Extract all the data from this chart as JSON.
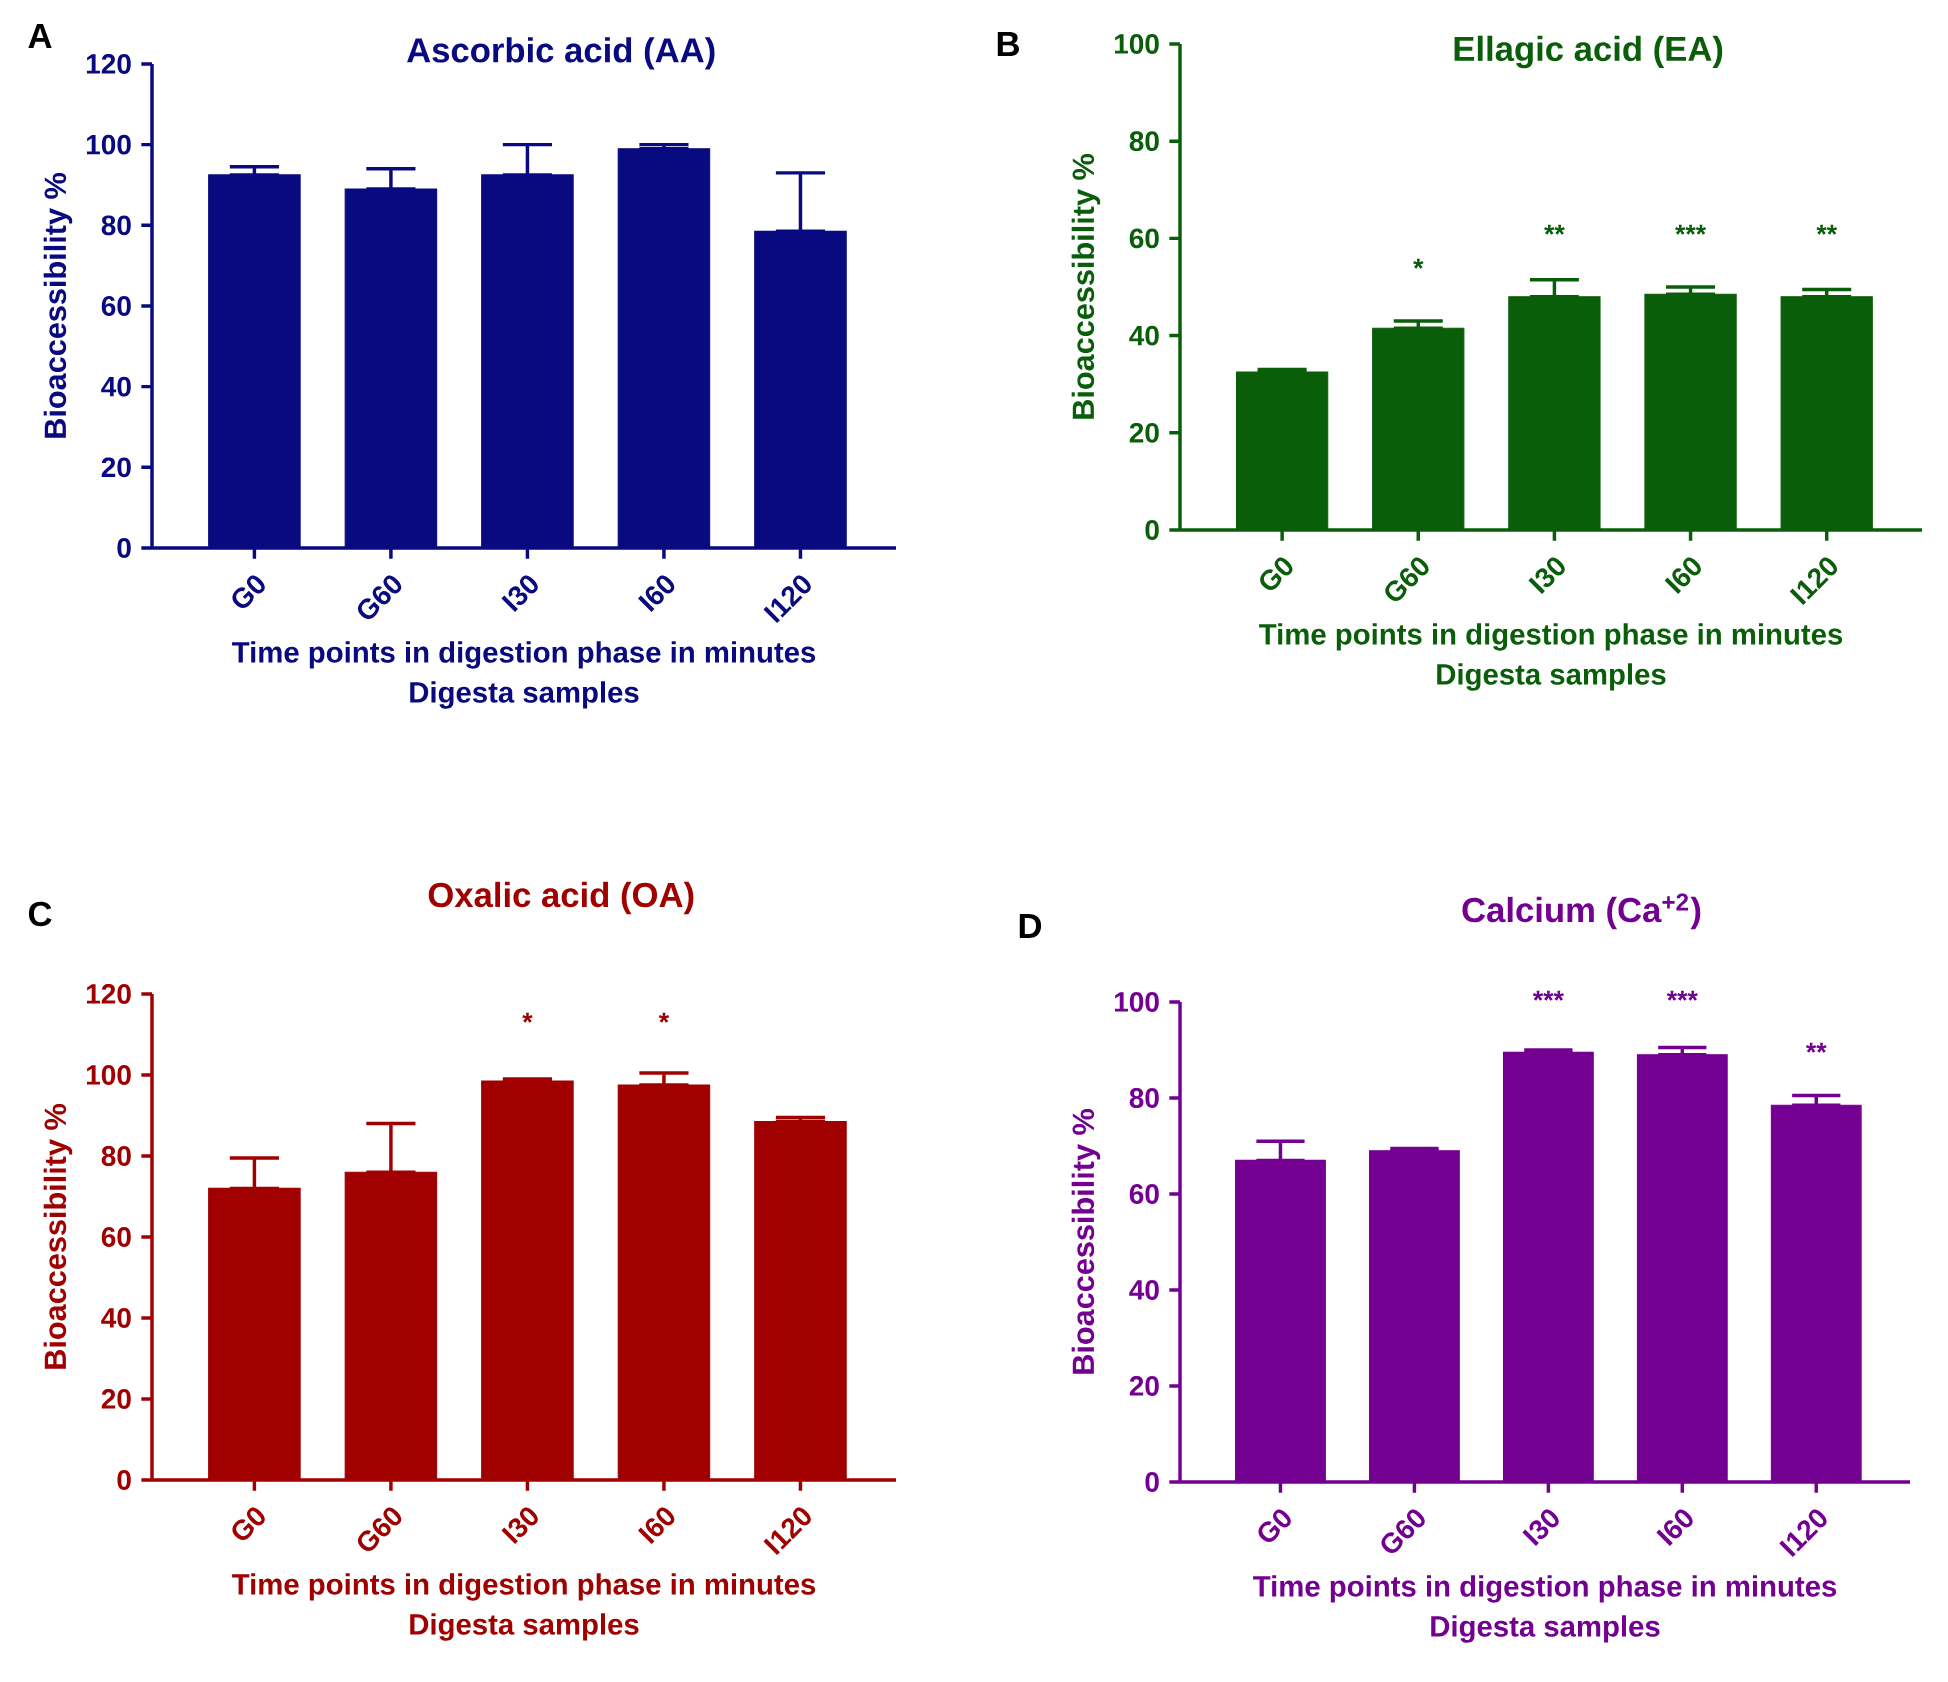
{
  "chart_data": [
    {
      "type": "bar",
      "title": "Ascorbic acid (AA)",
      "xlabel": "Time points in digestion phase in minutes",
      "ylabel": "Bioaccessibility %",
      "categories": [
        "G0",
        "G60",
        "I30",
        "I60",
        "I120"
      ],
      "values": [
        92.5,
        89,
        92.5,
        99,
        78.5
      ],
      "errors": [
        [
          92.5,
          94.5
        ],
        [
          89,
          94
        ],
        [
          92.5,
          100
        ],
        [
          99,
          100
        ],
        [
          78.5,
          93
        ]
      ],
      "color": "#0a0a80",
      "ylim": [
        0,
        120
      ],
      "yticks": [
        0,
        20,
        40,
        60,
        80,
        100,
        120
      ],
      "annotations": [
        "A",
        "Digesta samples"
      ]
    },
    {
      "type": "bar",
      "title": "Ellagic acid (EA)",
      "xlabel": "Time points in digestion phase in minutes",
      "ylabel": "Bioaccessibility %",
      "categories": [
        "G0",
        "G60",
        "I30",
        "I60",
        "I120"
      ],
      "values": [
        32.5,
        41.5,
        48,
        48.5,
        48
      ],
      "errors": [
        [
          32.5,
          33
        ],
        [
          41.5,
          43
        ],
        [
          48,
          51.5
        ],
        [
          48.5,
          50
        ],
        [
          48,
          49.5
        ]
      ],
      "color": "#0a5e0a",
      "ylim": [
        0,
        100
      ],
      "yticks": [
        0,
        20,
        40,
        60,
        80,
        100
      ],
      "annotations": [
        "B",
        "Digesta samples",
        "*",
        "**",
        "***",
        "**"
      ]
    },
    {
      "type": "bar",
      "title": "Oxalic acid (OA)",
      "xlabel": "Time points in digestion phase in minutes",
      "ylabel": "Bioaccessibility %",
      "categories": [
        "G0",
        "G60",
        "I30",
        "I60",
        "I120"
      ],
      "values": [
        72,
        76,
        98.5,
        97.5,
        88.5
      ],
      "errors": [
        [
          72,
          79.5
        ],
        [
          76,
          88
        ],
        [
          98.5,
          99
        ],
        [
          97.5,
          100.5
        ],
        [
          88.5,
          89.5
        ]
      ],
      "color": "#a00000",
      "ylim": [
        0,
        120
      ],
      "yticks": [
        0,
        20,
        40,
        60,
        80,
        100,
        120
      ],
      "annotations": [
        "C",
        "Digesta samples",
        "*",
        "*"
      ]
    },
    {
      "type": "bar",
      "title": "Calcium (Ca$^{+2}$)",
      "xlabel": "Time points in digestion phase in minutes",
      "ylabel": "Bioaccessibility %",
      "categories": [
        "G0",
        "G60",
        "I30",
        "I60",
        "I120"
      ],
      "values": [
        67,
        69,
        89.5,
        89,
        78.5
      ],
      "errors": [
        [
          67,
          71
        ],
        [
          69,
          69.5
        ],
        [
          89.5,
          90
        ],
        [
          89,
          90.5
        ],
        [
          78.5,
          80.5
        ]
      ],
      "color": "#730090",
      "ylim": [
        0,
        100
      ],
      "yticks": [
        0,
        20,
        40,
        60,
        80,
        100
      ],
      "annotations": [
        "D",
        "Digesta samples",
        "***",
        "***",
        "**"
      ]
    }
  ]
}
